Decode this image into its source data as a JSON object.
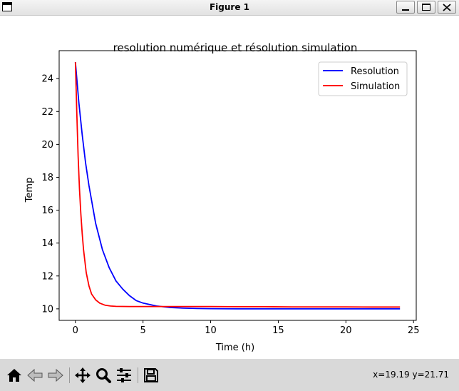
{
  "window": {
    "title": "Figure 1"
  },
  "toolbar": {
    "icons": [
      "home-icon",
      "back-icon",
      "forward-icon",
      "pan-icon",
      "zoom-icon",
      "configure-subplots-icon",
      "save-icon"
    ],
    "coords": "x=19.19 y=21.71"
  },
  "chart_data": {
    "type": "line",
    "title": "resolution numérique et résolution simulation",
    "xlabel": "Time (h)",
    "ylabel": "Temp",
    "xlim": [
      -1.2,
      25.2
    ],
    "ylim": [
      9.3,
      25.7
    ],
    "xticks": [
      0,
      5,
      10,
      15,
      20,
      25
    ],
    "yticks": [
      10,
      12,
      14,
      16,
      18,
      20,
      22,
      24
    ],
    "grid": false,
    "legend": "top-right",
    "series": [
      {
        "name": "Resolution",
        "color": "#0000ff",
        "x": [
          0,
          0.25,
          0.5,
          0.75,
          1,
          1.5,
          2,
          2.5,
          3,
          3.5,
          4,
          4.5,
          5,
          6,
          7,
          8,
          9,
          10,
          12,
          14,
          16,
          18,
          20,
          22,
          24
        ],
        "y": [
          25.0,
          22.6,
          20.6,
          18.9,
          17.5,
          15.2,
          13.6,
          12.5,
          11.7,
          11.2,
          10.8,
          10.5,
          10.35,
          10.17,
          10.08,
          10.04,
          10.02,
          10.01,
          10.0,
          10.0,
          10.0,
          10.0,
          10.0,
          10.0,
          10.0
        ]
      },
      {
        "name": "Simulation",
        "color": "#ff0000",
        "x": [
          0,
          0.1,
          0.2,
          0.3,
          0.4,
          0.5,
          0.6,
          0.8,
          1.0,
          1.2,
          1.5,
          1.8,
          2.2,
          2.6,
          3,
          4,
          5,
          6,
          8,
          10,
          12,
          14,
          16,
          18,
          20,
          22,
          24
        ],
        "y": [
          25.0,
          22.0,
          19.3,
          17.3,
          15.8,
          14.6,
          13.6,
          12.2,
          11.4,
          10.9,
          10.55,
          10.35,
          10.22,
          10.17,
          10.15,
          10.14,
          10.14,
          10.14,
          10.14,
          10.14,
          10.13,
          10.13,
          10.12,
          10.12,
          10.12,
          10.11,
          10.11
        ]
      }
    ]
  }
}
